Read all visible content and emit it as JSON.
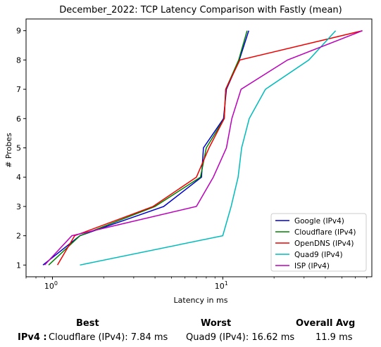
{
  "chart_data": {
    "type": "line",
    "title": "December_2022: TCP Latency Comparison with Fastly (mean)",
    "xlabel": "Latency in ms",
    "ylabel": "# Probes",
    "xscale": "log",
    "xlim": [
      0.7,
      75
    ],
    "ylim": [
      0.6,
      9.4
    ],
    "xticks": [
      {
        "v": 1,
        "base": "10",
        "exp": "0"
      },
      {
        "v": 10,
        "base": "10",
        "exp": "1"
      }
    ],
    "yticks": [
      1,
      2,
      3,
      4,
      5,
      6,
      7,
      8,
      9
    ],
    "legend_position": "lower-right",
    "series": [
      {
        "name": "Google (IPv4)",
        "color": "#0000cc",
        "points": [
          [
            0.88,
            1
          ],
          [
            1.45,
            2
          ],
          [
            4.5,
            3
          ],
          [
            7.5,
            4
          ],
          [
            7.7,
            5
          ],
          [
            10.1,
            6
          ],
          [
            10.5,
            7
          ],
          [
            12.5,
            8
          ],
          [
            14.2,
            9
          ]
        ]
      },
      {
        "name": "Cloudflare (IPv4)",
        "color": "#008000",
        "points": [
          [
            0.95,
            1
          ],
          [
            1.45,
            2
          ],
          [
            4.0,
            3
          ],
          [
            7.4,
            4
          ],
          [
            8.0,
            5
          ],
          [
            10.2,
            6
          ],
          [
            10.4,
            7
          ],
          [
            12.4,
            8
          ],
          [
            13.9,
            9
          ]
        ]
      },
      {
        "name": "OpenDNS (IPv4)",
        "color": "#ee0000",
        "points": [
          [
            1.07,
            1
          ],
          [
            1.35,
            2
          ],
          [
            3.9,
            3
          ],
          [
            7.0,
            4
          ],
          [
            8.3,
            5
          ],
          [
            10.2,
            6
          ],
          [
            10.4,
            7
          ],
          [
            12.6,
            8
          ],
          [
            66,
            9
          ]
        ]
      },
      {
        "name": "Quad9 (IPv4)",
        "color": "#00bbbb",
        "points": [
          [
            1.45,
            1
          ],
          [
            10.0,
            2
          ],
          [
            11.2,
            3
          ],
          [
            12.3,
            4
          ],
          [
            12.9,
            5
          ],
          [
            14.3,
            6
          ],
          [
            17.8,
            7
          ],
          [
            32,
            8
          ],
          [
            46,
            9
          ]
        ]
      },
      {
        "name": "ISP (IPv4)",
        "color": "#bb00bb",
        "points": [
          [
            0.9,
            1
          ],
          [
            1.3,
            2
          ],
          [
            7.0,
            3
          ],
          [
            8.8,
            4
          ],
          [
            10.5,
            5
          ],
          [
            11.3,
            6
          ],
          [
            12.8,
            7
          ],
          [
            24,
            8
          ],
          [
            66,
            9
          ]
        ]
      }
    ]
  },
  "summary": {
    "headers": {
      "best": "Best",
      "worst": "Worst",
      "avg": "Overall Avg"
    },
    "row_label": "IPv4 :",
    "best_value": "Cloudflare (IPv4): 7.84 ms",
    "worst_value": "Quad9 (IPv4): 16.62 ms",
    "avg_value": "11.9 ms"
  }
}
